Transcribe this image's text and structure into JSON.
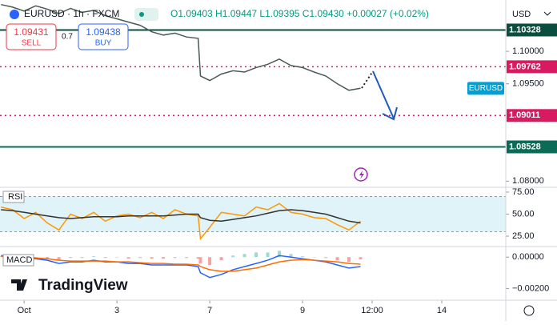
{
  "chart_data": [
    {
      "type": "line",
      "symbol": "EURUSD · 1h · FXCM",
      "ohlc": "O1.09403 H1.09447 L1.09395 C1.09430 +0.00027 (+0.02%)",
      "sell": {
        "price": "1.09431",
        "label": "SELL"
      },
      "spread": "0.7",
      "buy": {
        "price": "1.09438",
        "label": "BUY"
      },
      "currency": "USD",
      "tag": "EURUSD",
      "x": [
        -0.5,
        -0.25,
        0,
        0.25,
        0.5,
        0.75,
        1,
        1.25,
        1.5,
        1.75,
        2,
        2.25,
        2.5,
        2.75,
        3,
        3.25,
        3.5,
        3.75,
        3.8,
        4,
        4.25,
        4.5,
        4.75,
        5,
        5.25,
        5.5,
        5.75,
        6,
        6.25,
        6.5,
        6.75,
        7,
        7.25
      ],
      "series": [
        {
          "color": "#4a5a55",
          "values": [
            1.1072,
            1.1068,
            1.1062,
            1.107,
            1.1065,
            1.1058,
            1.1066,
            1.106,
            1.1063,
            1.1055,
            1.105,
            1.1045,
            1.104,
            1.103,
            1.1025,
            1.1028,
            1.1022,
            1.102,
            1.0962,
            1.0955,
            1.0965,
            1.097,
            1.0968,
            1.0975,
            1.098,
            1.0988,
            1.0978,
            1.0975,
            1.0968,
            1.0962,
            1.095,
            1.094,
            1.0943
          ]
        }
      ],
      "levels": [
        {
          "value": 1.10328,
          "color": "#0b4d3f",
          "dashed": false
        },
        {
          "value": 1.09762,
          "color": "#d81b60",
          "dashed": true
        },
        {
          "value": 1.09011,
          "color": "#d81b60",
          "dashed": true
        },
        {
          "value": 1.08528,
          "color": "#0b6b57",
          "dashed": false
        }
      ],
      "xlim": [
        -0.52,
        10.38
      ],
      "xticks": [
        {
          "value": 0,
          "label": "Oct"
        },
        {
          "value": 2,
          "label": "3"
        },
        {
          "value": 4,
          "label": "7"
        },
        {
          "value": 6,
          "label": "9"
        },
        {
          "value": 7.5,
          "label": "12:00"
        },
        {
          "value": 9,
          "label": "14"
        }
      ],
      "ylim": [
        1.0793,
        1.1079
      ],
      "yticks": [
        {
          "value": 1.1,
          "label": "1.10000"
        },
        {
          "value": 1.095,
          "label": "1.09500"
        },
        {
          "value": 1.08,
          "label": "1.08000"
        }
      ],
      "logo": "TradingView"
    },
    {
      "type": "line",
      "title": "RSI",
      "x": [
        -0.5,
        -0.25,
        0,
        0.25,
        0.5,
        0.75,
        1,
        1.25,
        1.5,
        1.75,
        2,
        2.25,
        2.5,
        2.75,
        3,
        3.25,
        3.5,
        3.75,
        3.8,
        4,
        4.25,
        4.5,
        4.75,
        5,
        5.25,
        5.5,
        5.75,
        6,
        6.25,
        6.5,
        6.75,
        7,
        7.25
      ],
      "series": [
        {
          "name": "RSI",
          "color": "#ff9800",
          "values": [
            58,
            55,
            45,
            52,
            40,
            32,
            50,
            45,
            52,
            42,
            48,
            50,
            46,
            52,
            45,
            55,
            50,
            48,
            22,
            35,
            52,
            50,
            48,
            58,
            55,
            62,
            52,
            50,
            46,
            45,
            38,
            32,
            42
          ]
        },
        {
          "color": "#333333",
          "values": [
            55,
            54,
            52,
            50,
            48,
            46,
            45,
            46,
            47,
            47,
            47,
            48,
            48,
            48,
            48,
            49,
            50,
            50,
            46,
            43,
            42,
            44,
            46,
            48,
            51,
            54,
            55,
            54,
            52,
            50,
            46,
            42,
            40
          ]
        }
      ],
      "band": [
        30,
        70
      ],
      "band_color": "#dff3f8",
      "xlim": [
        -0.52,
        10.38
      ],
      "ylim": [
        15.9,
        78.6
      ],
      "yticks": [
        {
          "value": 75,
          "label": "75.00"
        },
        {
          "value": 50,
          "label": "50.00"
        },
        {
          "value": 25,
          "label": "25.00"
        }
      ]
    },
    {
      "type": "combo",
      "title": "MACD",
      "x": [
        -0.5,
        -0.25,
        0,
        0.25,
        0.5,
        0.75,
        1,
        1.25,
        1.5,
        1.75,
        2,
        2.25,
        2.5,
        2.75,
        3,
        3.25,
        3.5,
        3.75,
        3.8,
        4,
        4.25,
        4.5,
        4.75,
        5,
        5.25,
        5.5,
        5.75,
        6,
        6.25,
        6.5,
        6.75,
        7,
        7.25
      ],
      "series": [
        {
          "type": "bar",
          "colors": [
            "#9fd9cf",
            "#f7a1a4"
          ],
          "values": [
            5e-05,
            0,
            -0.0001,
            -5e-05,
            -0.0001,
            -0.0002,
            -5e-05,
            -5e-05,
            5e-05,
            -5e-05,
            0,
            -0.0001,
            -5e-05,
            -0.0001,
            -0.0001,
            -5e-05,
            -5e-05,
            -0.0001,
            -0.0004,
            -0.0005,
            -0.0002,
            0.0001,
            0.0002,
            0.0003,
            0.0003,
            0.0004,
            0.0002,
            5e-05,
            0,
            -5e-05,
            -0.0002,
            -0.0003,
            -0.00015
          ]
        },
        {
          "type": "line",
          "color": "#2962ff",
          "values": [
            0.0001,
            5e-05,
            -0.0001,
            -0.0001,
            -0.0002,
            -0.0004,
            -0.0003,
            -0.0003,
            -0.0002,
            -0.0003,
            -0.0003,
            -0.0004,
            -0.0004,
            -0.0005,
            -0.0005,
            -0.0005,
            -0.0005,
            -0.0006,
            -0.001,
            -0.0013,
            -0.0011,
            -0.0008,
            -0.0006,
            -0.0004,
            -0.0002,
            0.0001,
            0,
            -0.0001,
            -0.0002,
            -0.0003,
            -0.0005,
            -0.0007,
            -0.0006
          ]
        },
        {
          "type": "line",
          "color": "#ff6d00",
          "values": [
            5e-05,
            5e-05,
            0,
            -5e-05,
            -0.0001,
            -0.0002,
            -0.00025,
            -0.00025,
            -0.00025,
            -0.00025,
            -0.0003,
            -0.0003,
            -0.00035,
            -0.0004,
            -0.0004,
            -0.00045,
            -0.00045,
            -0.0005,
            -0.0006,
            -0.0008,
            -0.0009,
            -0.0009,
            -0.0008,
            -0.0007,
            -0.0005,
            -0.0003,
            -0.0002,
            -0.00015,
            -0.0002,
            -0.00025,
            -0.0003,
            -0.0004,
            -0.00045
          ]
        }
      ],
      "xlim": [
        -0.52,
        10.38
      ],
      "ylim": [
        -0.00259,
        0.00047
      ],
      "yticks": [
        {
          "value": 0,
          "label": "0.00000"
        },
        {
          "value": -0.002,
          "label": "−0.00200"
        }
      ]
    }
  ]
}
